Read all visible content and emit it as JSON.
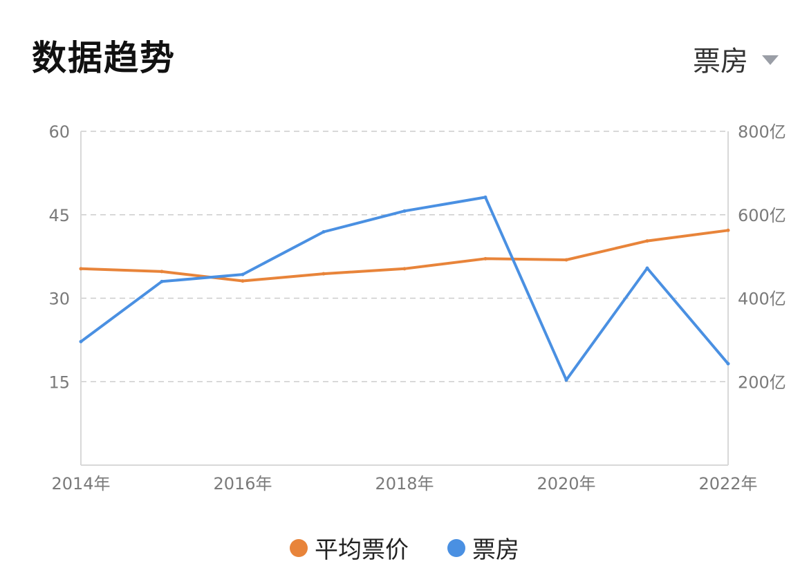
{
  "header": {
    "title": "数据趋势",
    "metric_selector": {
      "selected": "票房",
      "icon": "caret-down-icon"
    }
  },
  "colors": {
    "avg_price": "#E8843A",
    "box_office": "#4A90E2",
    "grid": "#cccccc",
    "axis": "#d8d8d8"
  },
  "chart_data": {
    "type": "line",
    "x": [
      "2014年",
      "2015年",
      "2016年",
      "2017年",
      "2018年",
      "2019年",
      "2020年",
      "2021年",
      "2022年"
    ],
    "x_tick_labels": [
      "2014年",
      "2016年",
      "2018年",
      "2020年",
      "2022年"
    ],
    "series": [
      {
        "name": "平均票价",
        "axis": "left",
        "values": [
          35.3,
          34.8,
          33.1,
          34.4,
          35.3,
          37.1,
          36.9,
          40.3,
          42.2
        ]
      },
      {
        "name": "票房",
        "axis": "right",
        "values": [
          296,
          440,
          457,
          559,
          609,
          642,
          204,
          472,
          243
        ]
      }
    ],
    "y_left": {
      "ylim": [
        0,
        60
      ],
      "ticks": [
        15,
        30,
        45,
        60
      ],
      "tick_labels": [
        "15",
        "30",
        "45",
        "60"
      ]
    },
    "y_right": {
      "ylim": [
        0,
        800
      ],
      "ticks": [
        200,
        400,
        600,
        800
      ],
      "tick_labels": [
        "200亿",
        "400亿",
        "600亿",
        "800亿"
      ]
    },
    "grid": true,
    "legend_position": "bottom-center"
  },
  "legend": [
    {
      "label": "平均票价",
      "color": "#E8843A"
    },
    {
      "label": "票房",
      "color": "#4A90E2"
    }
  ]
}
